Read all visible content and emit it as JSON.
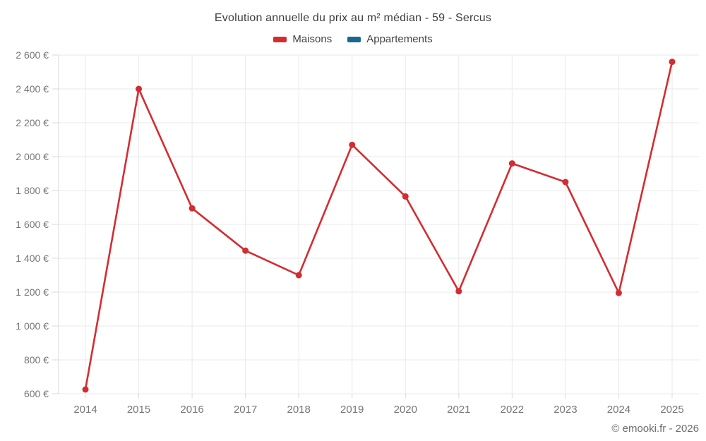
{
  "chart": {
    "title": "Evolution annuelle du prix au m² médian - 59 - Sercus",
    "attribution": "© emooki.fr - 2026"
  },
  "chart_data": {
    "type": "line",
    "title": "Evolution annuelle du prix au m² médian - 59 - Sercus",
    "x": [
      2014,
      2015,
      2016,
      2017,
      2018,
      2019,
      2020,
      2021,
      2022,
      2023,
      2024,
      2025
    ],
    "x_tick_labels": [
      "2014",
      "2015",
      "2016",
      "2017",
      "2018",
      "2019",
      "2020",
      "2021",
      "2022",
      "2023",
      "2024",
      "2025"
    ],
    "series": [
      {
        "name": "Maisons",
        "color": "#d32d31",
        "values": [
          625,
          2400,
          1695,
          1445,
          1300,
          2070,
          1765,
          1205,
          1960,
          1850,
          1195,
          2560
        ]
      },
      {
        "name": "Appartements",
        "color": "#19688f",
        "values": []
      }
    ],
    "xlabel": "",
    "ylabel": "",
    "ylim": [
      600,
      2600
    ],
    "y_ticks": [
      600,
      800,
      1000,
      1200,
      1400,
      1600,
      1800,
      2000,
      2200,
      2400,
      2600
    ],
    "y_tick_labels": [
      "600 €",
      "800 €",
      "1 000 €",
      "1 200 €",
      "1 400 €",
      "1 600 €",
      "1 800 €",
      "2 000 €",
      "2 200 €",
      "2 400 €",
      "2 600 €"
    ],
    "grid": true,
    "legend_position": "top",
    "unit": "€"
  }
}
